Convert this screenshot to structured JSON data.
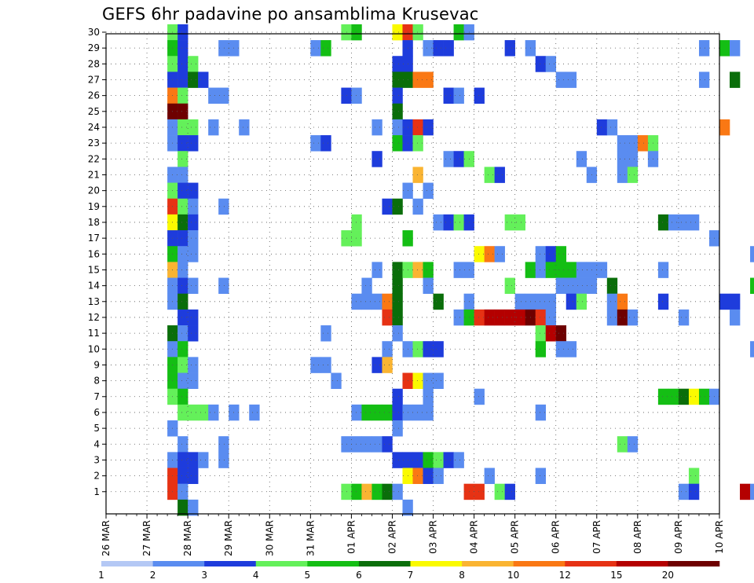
{
  "chart_data": {
    "type": "heatmap",
    "title": "GEFS 6hr padavine po ansamblima Krusevac",
    "y_ticks": [
      "1",
      "2",
      "3",
      "4",
      "5",
      "6",
      "7",
      "8",
      "9",
      "10",
      "11",
      "12",
      "13",
      "14",
      "15",
      "16",
      "17",
      "18",
      "19",
      "20",
      "21",
      "22",
      "23",
      "24",
      "25",
      "26",
      "27",
      "28",
      "29",
      "30"
    ],
    "x_ticks": [
      "26 MAR",
      "27 MAR",
      "28 MAR",
      "29 MAR",
      "30 MAR",
      "31 MAR",
      "01 APR",
      "02 APR",
      "03 APR",
      "04 APR",
      "05 APR",
      "06 APR",
      "07 APR",
      "08 APR",
      "09 APR",
      "10 APR"
    ],
    "x_range_days": [
      0,
      15
    ],
    "y_range_members": [
      0,
      30
    ],
    "step_per_day": 4,
    "grid": true,
    "legend_placement": "bottom",
    "legend": {
      "labels": [
        "1",
        "2",
        "3",
        "4",
        "5",
        "6",
        "7",
        "8",
        "10",
        "12",
        "15",
        "20"
      ],
      "colors": [
        "#b4c8f5",
        "#5a8cf0",
        "#1e3cdc",
        "#64f05a",
        "#14be14",
        "#0a6e0a",
        "#fafa00",
        "#fab432",
        "#fa7814",
        "#e63214",
        "#b40000",
        "#6e0000"
      ]
    },
    "cells": [
      [
        6,
        30,
        3
      ],
      [
        6,
        29,
        4
      ],
      [
        6,
        28,
        3
      ],
      [
        6,
        27,
        2
      ],
      [
        6,
        26,
        8
      ],
      [
        6,
        25,
        11
      ],
      [
        6,
        24,
        1
      ],
      [
        6,
        23,
        1
      ],
      [
        6,
        21,
        1
      ],
      [
        6,
        20,
        3
      ],
      [
        6,
        19,
        9
      ],
      [
        6,
        18,
        6
      ],
      [
        6,
        17,
        2
      ],
      [
        6,
        16,
        4
      ],
      [
        6,
        15,
        7
      ],
      [
        6,
        14,
        1
      ],
      [
        6,
        13,
        1
      ],
      [
        6,
        11,
        5
      ],
      [
        6,
        10,
        1
      ],
      [
        6,
        9,
        4
      ],
      [
        6,
        8,
        4
      ],
      [
        6,
        7,
        3
      ],
      [
        6,
        5,
        1
      ],
      [
        6,
        3,
        1
      ],
      [
        6,
        2,
        9
      ],
      [
        6,
        1,
        9
      ],
      [
        7,
        30,
        2
      ],
      [
        7,
        29,
        2
      ],
      [
        7,
        28,
        2
      ],
      [
        7,
        27,
        2
      ],
      [
        7,
        26,
        3
      ],
      [
        7,
        25,
        11
      ],
      [
        7,
        24,
        3
      ],
      [
        7,
        23,
        2
      ],
      [
        7,
        22,
        3
      ],
      [
        7,
        21,
        1
      ],
      [
        7,
        20,
        2
      ],
      [
        7,
        19,
        3
      ],
      [
        7,
        18,
        5
      ],
      [
        7,
        17,
        2
      ],
      [
        7,
        16,
        1
      ],
      [
        7,
        15,
        1
      ],
      [
        7,
        14,
        2
      ],
      [
        7,
        13,
        5
      ],
      [
        7,
        12,
        2
      ],
      [
        7,
        11,
        1
      ],
      [
        7,
        10,
        4
      ],
      [
        7,
        9,
        3
      ],
      [
        7,
        8,
        1
      ],
      [
        7,
        7,
        4
      ],
      [
        7,
        6,
        3
      ],
      [
        7,
        4,
        1
      ],
      [
        7,
        3,
        2
      ],
      [
        7,
        2,
        2
      ],
      [
        7,
        1,
        1
      ],
      [
        7,
        0,
        5
      ],
      [
        8,
        28,
        3
      ],
      [
        8,
        27,
        5
      ],
      [
        8,
        24,
        3
      ],
      [
        8,
        23,
        2
      ],
      [
        8,
        20,
        2
      ],
      [
        8,
        19,
        1
      ],
      [
        8,
        18,
        2
      ],
      [
        8,
        17,
        1
      ],
      [
        8,
        16,
        1
      ],
      [
        8,
        14,
        1
      ],
      [
        8,
        12,
        2
      ],
      [
        8,
        11,
        2
      ],
      [
        8,
        9,
        1
      ],
      [
        8,
        8,
        1
      ],
      [
        8,
        6,
        3
      ],
      [
        8,
        3,
        2
      ],
      [
        8,
        2,
        2
      ],
      [
        8,
        0,
        1
      ],
      [
        9,
        27,
        2
      ],
      [
        9,
        6,
        3
      ],
      [
        9,
        3,
        1
      ],
      [
        10,
        26,
        1
      ],
      [
        10,
        24,
        1
      ],
      [
        10,
        6,
        1
      ],
      [
        11,
        29,
        1
      ],
      [
        11,
        26,
        1
      ],
      [
        11,
        19,
        1
      ],
      [
        11,
        14,
        1
      ],
      [
        11,
        4,
        1
      ],
      [
        11,
        3,
        1
      ],
      [
        12,
        29,
        1
      ],
      [
        12,
        6,
        1
      ],
      [
        13,
        24,
        1
      ],
      [
        14,
        6,
        1
      ],
      [
        20,
        29,
        1
      ],
      [
        20,
        23,
        1
      ],
      [
        20,
        9,
        1
      ],
      [
        21,
        29,
        4
      ],
      [
        21,
        23,
        2
      ],
      [
        21,
        11,
        1
      ],
      [
        21,
        9,
        1
      ],
      [
        22,
        8,
        1
      ],
      [
        23,
        30,
        3
      ],
      [
        23,
        26,
        2
      ],
      [
        23,
        17,
        3
      ],
      [
        23,
        4,
        1
      ],
      [
        23,
        1,
        3
      ],
      [
        24,
        30,
        4
      ],
      [
        24,
        26,
        1
      ],
      [
        24,
        18,
        3
      ],
      [
        24,
        17,
        3
      ],
      [
        24,
        13,
        1
      ],
      [
        24,
        6,
        1
      ],
      [
        24,
        4,
        1
      ],
      [
        24,
        1,
        4
      ],
      [
        25,
        14,
        1
      ],
      [
        25,
        13,
        1
      ],
      [
        25,
        6,
        4
      ],
      [
        25,
        4,
        1
      ],
      [
        25,
        1,
        7
      ],
      [
        26,
        24,
        1
      ],
      [
        26,
        22,
        2
      ],
      [
        26,
        15,
        1
      ],
      [
        26,
        13,
        1
      ],
      [
        26,
        9,
        2
      ],
      [
        26,
        6,
        4
      ],
      [
        26,
        4,
        1
      ],
      [
        26,
        1,
        4
      ],
      [
        27,
        19,
        2
      ],
      [
        27,
        13,
        8
      ],
      [
        27,
        12,
        9
      ],
      [
        27,
        10,
        1
      ],
      [
        27,
        9,
        7
      ],
      [
        27,
        6,
        4
      ],
      [
        27,
        4,
        2
      ],
      [
        27,
        1,
        5
      ],
      [
        28,
        30,
        6
      ],
      [
        28,
        28,
        2
      ],
      [
        28,
        27,
        5
      ],
      [
        28,
        26,
        2
      ],
      [
        28,
        25,
        5
      ],
      [
        28,
        24,
        1
      ],
      [
        28,
        23,
        4
      ],
      [
        28,
        19,
        5
      ],
      [
        28,
        15,
        5
      ],
      [
        28,
        14,
        5
      ],
      [
        28,
        13,
        5
      ],
      [
        28,
        12,
        5
      ],
      [
        28,
        11,
        1
      ],
      [
        28,
        7,
        2
      ],
      [
        28,
        6,
        2
      ],
      [
        28,
        5,
        1
      ],
      [
        28,
        3,
        2
      ],
      [
        28,
        1,
        1
      ],
      [
        29,
        30,
        9
      ],
      [
        29,
        29,
        2
      ],
      [
        29,
        28,
        2
      ],
      [
        29,
        27,
        5
      ],
      [
        29,
        24,
        2
      ],
      [
        29,
        23,
        2
      ],
      [
        29,
        20,
        1
      ],
      [
        29,
        17,
        4
      ],
      [
        29,
        15,
        3
      ],
      [
        29,
        10,
        1
      ],
      [
        29,
        8,
        9
      ],
      [
        29,
        6,
        1
      ],
      [
        29,
        3,
        2
      ],
      [
        29,
        2,
        6
      ],
      [
        29,
        0,
        1
      ],
      [
        30,
        30,
        3
      ],
      [
        30,
        27,
        8
      ],
      [
        30,
        24,
        9
      ],
      [
        30,
        23,
        3
      ],
      [
        30,
        21,
        7
      ],
      [
        30,
        19,
        1
      ],
      [
        30,
        15,
        7
      ],
      [
        30,
        10,
        3
      ],
      [
        30,
        8,
        6
      ],
      [
        30,
        6,
        1
      ],
      [
        30,
        3,
        2
      ],
      [
        30,
        2,
        8
      ],
      [
        31,
        29,
        1
      ],
      [
        31,
        27,
        8
      ],
      [
        31,
        24,
        2
      ],
      [
        31,
        20,
        1
      ],
      [
        31,
        15,
        4
      ],
      [
        31,
        14,
        1
      ],
      [
        31,
        10,
        2
      ],
      [
        31,
        8,
        1
      ],
      [
        31,
        7,
        1
      ],
      [
        31,
        6,
        1
      ],
      [
        31,
        3,
        4
      ],
      [
        31,
        2,
        2
      ],
      [
        32,
        29,
        2
      ],
      [
        32,
        18,
        1
      ],
      [
        32,
        13,
        5
      ],
      [
        32,
        10,
        2
      ],
      [
        32,
        8,
        1
      ],
      [
        32,
        3,
        3
      ],
      [
        32,
        2,
        1
      ],
      [
        33,
        29,
        2
      ],
      [
        33,
        26,
        2
      ],
      [
        33,
        22,
        1
      ],
      [
        33,
        18,
        2
      ],
      [
        33,
        3,
        2
      ],
      [
        34,
        30,
        4
      ],
      [
        34,
        26,
        1
      ],
      [
        34,
        22,
        2
      ],
      [
        34,
        18,
        3
      ],
      [
        34,
        15,
        1
      ],
      [
        34,
        12,
        1
      ],
      [
        34,
        3,
        1
      ],
      [
        35,
        30,
        1
      ],
      [
        35,
        22,
        3
      ],
      [
        35,
        18,
        2
      ],
      [
        35,
        15,
        1
      ],
      [
        35,
        13,
        1
      ],
      [
        35,
        12,
        4
      ],
      [
        35,
        1,
        9
      ],
      [
        36,
        26,
        2
      ],
      [
        36,
        16,
        6
      ],
      [
        36,
        12,
        9
      ],
      [
        36,
        7,
        1
      ],
      [
        36,
        1,
        9
      ],
      [
        37,
        21,
        3
      ],
      [
        37,
        16,
        8
      ],
      [
        37,
        12,
        10
      ],
      [
        37,
        2,
        1
      ],
      [
        38,
        21,
        2
      ],
      [
        38,
        16,
        1
      ],
      [
        38,
        12,
        10
      ],
      [
        38,
        1,
        3
      ],
      [
        39,
        29,
        2
      ],
      [
        39,
        18,
        3
      ],
      [
        39,
        14,
        3
      ],
      [
        39,
        12,
        10
      ],
      [
        39,
        1,
        2
      ],
      [
        40,
        18,
        3
      ],
      [
        40,
        13,
        1
      ],
      [
        40,
        12,
        10
      ],
      [
        41,
        29,
        1
      ],
      [
        41,
        15,
        4
      ],
      [
        41,
        13,
        1
      ],
      [
        41,
        12,
        11
      ],
      [
        42,
        28,
        2
      ],
      [
        42,
        16,
        1
      ],
      [
        42,
        15,
        1
      ],
      [
        42,
        13,
        1
      ],
      [
        42,
        12,
        9
      ],
      [
        42,
        11,
        3
      ],
      [
        42,
        10,
        4
      ],
      [
        42,
        6,
        1
      ],
      [
        42,
        2,
        1
      ],
      [
        43,
        28,
        1
      ],
      [
        43,
        16,
        2
      ],
      [
        43,
        15,
        4
      ],
      [
        43,
        13,
        1
      ],
      [
        43,
        12,
        1
      ],
      [
        43,
        11,
        10
      ],
      [
        44,
        27,
        1
      ],
      [
        44,
        16,
        4
      ],
      [
        44,
        15,
        4
      ],
      [
        44,
        14,
        1
      ],
      [
        44,
        11,
        11
      ],
      [
        44,
        10,
        1
      ],
      [
        45,
        27,
        1
      ],
      [
        45,
        15,
        4
      ],
      [
        45,
        14,
        1
      ],
      [
        45,
        13,
        2
      ],
      [
        45,
        10,
        1
      ],
      [
        46,
        22,
        1
      ],
      [
        46,
        15,
        1
      ],
      [
        46,
        14,
        1
      ],
      [
        46,
        13,
        3
      ],
      [
        47,
        21,
        1
      ],
      [
        47,
        15,
        1
      ],
      [
        47,
        14,
        1
      ],
      [
        48,
        24,
        2
      ],
      [
        48,
        15,
        1
      ],
      [
        49,
        24,
        1
      ],
      [
        49,
        14,
        5
      ],
      [
        49,
        13,
        1
      ],
      [
        49,
        12,
        1
      ],
      [
        50,
        23,
        1
      ],
      [
        50,
        22,
        1
      ],
      [
        50,
        21,
        1
      ],
      [
        50,
        13,
        8
      ],
      [
        50,
        12,
        11
      ],
      [
        50,
        4,
        3
      ],
      [
        51,
        23,
        1
      ],
      [
        51,
        22,
        1
      ],
      [
        51,
        21,
        3
      ],
      [
        51,
        12,
        1
      ],
      [
        51,
        4,
        1
      ],
      [
        52,
        23,
        8
      ],
      [
        53,
        23,
        3
      ],
      [
        53,
        22,
        1
      ],
      [
        54,
        18,
        5
      ],
      [
        54,
        15,
        1
      ],
      [
        54,
        13,
        2
      ],
      [
        54,
        7,
        4
      ],
      [
        55,
        18,
        1
      ],
      [
        55,
        7,
        4
      ],
      [
        56,
        18,
        1
      ],
      [
        56,
        12,
        1
      ],
      [
        56,
        7,
        5
      ],
      [
        56,
        1,
        1
      ],
      [
        57,
        18,
        1
      ],
      [
        57,
        7,
        6
      ],
      [
        57,
        2,
        3
      ],
      [
        57,
        1,
        2
      ],
      [
        58,
        29,
        1
      ],
      [
        58,
        27,
        1
      ],
      [
        58,
        7,
        4
      ],
      [
        59,
        17,
        1
      ],
      [
        59,
        7,
        1
      ],
      [
        60,
        29,
        4
      ],
      [
        60,
        24,
        8
      ],
      [
        60,
        13,
        2
      ],
      [
        61,
        29,
        1
      ],
      [
        61,
        27,
        5
      ],
      [
        61,
        13,
        2
      ],
      [
        61,
        12,
        1
      ],
      [
        62,
        1,
        10
      ],
      [
        63,
        16,
        1
      ],
      [
        63,
        14,
        4
      ],
      [
        63,
        10,
        1
      ],
      [
        63,
        1,
        1
      ],
      [
        65,
        23,
        1
      ],
      [
        66,
        26,
        1
      ],
      [
        68,
        29,
        1
      ],
      [
        68,
        26,
        1
      ],
      [
        68,
        10,
        1
      ],
      [
        68,
        1,
        1
      ],
      [
        69,
        29,
        1
      ],
      [
        69,
        12,
        2
      ],
      [
        69,
        11,
        2
      ],
      [
        69,
        10,
        2
      ],
      [
        69,
        1,
        1
      ]
    ]
  }
}
